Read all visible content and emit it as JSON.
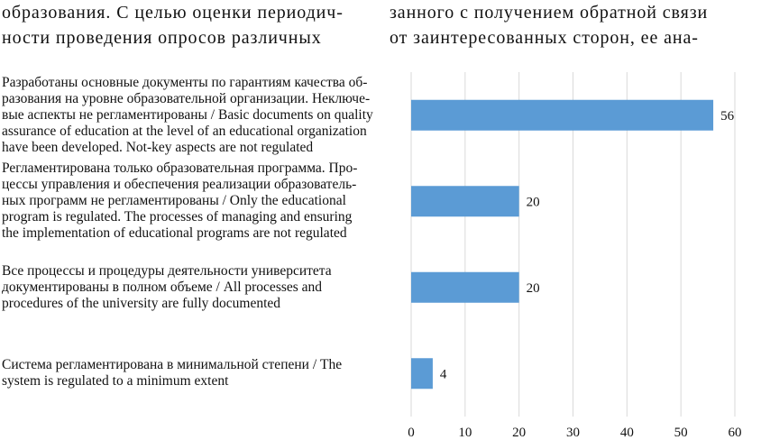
{
  "text_blocks": {
    "left_column": [
      "образования. С целью оценки периодич-",
      "ности проведения опросов различных"
    ],
    "right_column": [
      "занного с получением обратной связи",
      "от заинтересованных сторон, ее ана-"
    ]
  },
  "colors": {
    "bar": "#5b9bd5",
    "grid": "#d9d9d9",
    "text": "#111111"
  },
  "chart_data": {
    "type": "bar",
    "orientation": "horizontal",
    "categories": [
      "Разработаны основные документы по гарантиям качества образования на уровне образовательной организации. Неключевые аспекты не регламентированы / Basic documents on quality assurance of education at the level of an educational organization have been developed. Not-key aspects are not regulated",
      "Регламентирована только образовательная программа. Процессы управления и обеспечения реализации образовательных программ не регламентированы / Only the educational program is regulated. The processes of managing and ensuring the implementation of educational programs are not regulated",
      "Все процессы и процедуры деятельности университета документированы в полном объеме / All processes and procedures of the university are fully documented",
      "Система регламентирована в минимальной степени / The system is regulated to a minimum extent"
    ],
    "category_lines": [
      [
        "Разработаны основные документы по гарантиям качества об-",
        "разования на уровне образовательной организации. Неключе-",
        "вые аспекты не регламентированы / Basic documents on quality",
        "assurance of education at the level of an educational organization",
        "have been developed. Not-key aspects are not regulated"
      ],
      [
        "Регламентирована только образовательная программа. Про-",
        "цессы управления и обеспечения реализации образователь-",
        "ных программ не регламентированы / Only the educational",
        "program is regulated. The processes of managing and ensuring",
        "the implementation of educational programs are not regulated"
      ],
      [
        "Все процессы и процедуры деятельности университета",
        "документированы в полном объеме / All processes and",
        "procedures of the university are fully documented"
      ],
      [
        "Система регламентирована в минимальной степени / The",
        "system is regulated to a minimum extent"
      ]
    ],
    "values": [
      56,
      20,
      20,
      4
    ],
    "xlim": [
      0,
      60
    ],
    "xticks": [
      0,
      10,
      20,
      30,
      40,
      50,
      60
    ],
    "xlabel": "",
    "ylabel": "",
    "title": "",
    "grid": true,
    "legend": "none"
  }
}
